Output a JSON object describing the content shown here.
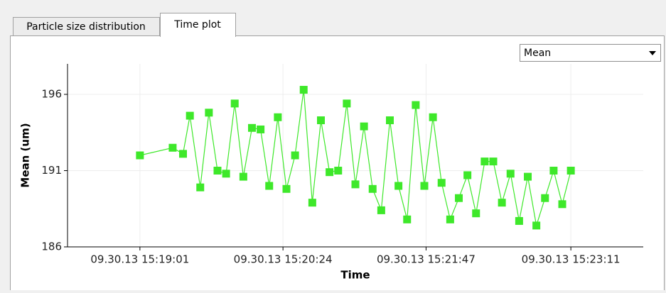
{
  "tabs": [
    "Particle size distribution",
    "Time plot"
  ],
  "active_tab": 1,
  "dropdown": {
    "selected": "Mean"
  },
  "chart_data": {
    "type": "line",
    "x_label": "Time",
    "y_label": "Mean (um)",
    "color": "#3ee82a",
    "grid": true,
    "x": [
      "15:19:01",
      "15:19:20",
      "15:19:26",
      "15:19:30",
      "15:19:36",
      "15:19:41",
      "15:19:46",
      "15:19:51",
      "15:19:56",
      "15:20:01",
      "15:20:06",
      "15:20:11",
      "15:20:16",
      "15:20:21",
      "15:20:26",
      "15:20:31",
      "15:20:36",
      "15:20:41",
      "15:20:46",
      "15:20:51",
      "15:20:56",
      "15:21:01",
      "15:21:06",
      "15:21:11",
      "15:21:16",
      "15:21:21",
      "15:21:26",
      "15:21:31",
      "15:21:36",
      "15:21:41",
      "15:21:46",
      "15:21:51",
      "15:21:56",
      "15:22:01",
      "15:22:06",
      "15:22:11",
      "15:22:16",
      "15:22:21",
      "15:22:26",
      "15:22:31",
      "15:22:36",
      "15:22:41",
      "15:22:46",
      "15:22:51",
      "15:22:56",
      "15:23:01",
      "15:23:06",
      "15:23:11"
    ],
    "values": [
      192.0,
      192.5,
      192.1,
      194.6,
      189.9,
      194.8,
      191.0,
      190.8,
      195.4,
      190.6,
      193.8,
      193.7,
      190.0,
      194.5,
      189.8,
      192.0,
      196.3,
      188.9,
      194.3,
      190.9,
      191.0,
      195.4,
      190.1,
      193.9,
      189.8,
      188.4,
      194.3,
      190.0,
      187.8,
      195.3,
      190.0,
      194.5,
      190.2,
      187.8,
      189.2,
      190.7,
      188.2,
      191.6,
      191.6,
      188.9,
      190.8,
      187.7,
      190.6,
      187.4,
      189.2,
      191.0,
      188.8,
      191.0
    ],
    "xlim": [
      "15:18:19",
      "15:23:53"
    ],
    "xticks": [
      {
        "value": "15:19:01",
        "label": "09.30.13 15:19:01"
      },
      {
        "value": "15:20:24",
        "label": "09.30.13 15:20:24"
      },
      {
        "value": "15:21:47",
        "label": "09.30.13 15:21:47"
      },
      {
        "value": "15:23:11",
        "label": "09.30.13 15:23:11"
      }
    ],
    "ylim": [
      186,
      198
    ],
    "yticks": [
      186,
      191,
      196
    ]
  }
}
